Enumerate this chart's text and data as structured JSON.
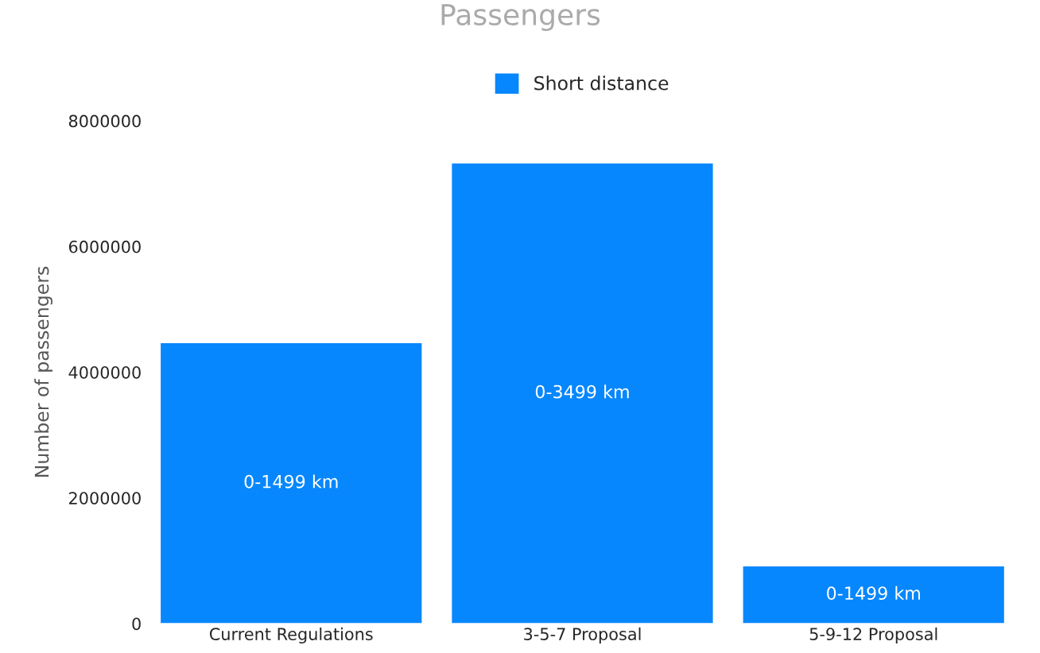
{
  "chart_data": {
    "type": "bar",
    "title": "Passengers",
    "ylabel": "Number of passengers",
    "categories": [
      "Current Regulations",
      "3-5-7 Proposal",
      "5-9-12 Proposal"
    ],
    "series": [
      {
        "name": "Short distance",
        "color": "#0787fd",
        "values": [
          4470000,
          7330000,
          920000
        ],
        "value_labels": [
          "0-1499 km",
          "0-3499 km",
          "0-1499 km"
        ]
      }
    ],
    "ylim": [
      0,
      8000000
    ],
    "yticks": [
      0,
      2000000,
      4000000,
      6000000,
      8000000
    ],
    "grid": false,
    "legend": "top"
  }
}
